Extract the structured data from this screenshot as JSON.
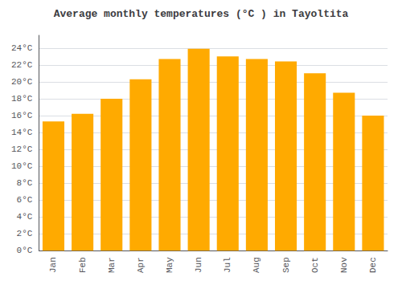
{
  "chart_data": {
    "type": "bar",
    "title": "Average monthly temperatures (°C ) in Tayoltita",
    "categories": [
      "Jan",
      "Feb",
      "Mar",
      "Apr",
      "May",
      "Jun",
      "Jul",
      "Aug",
      "Sep",
      "Oct",
      "Nov",
      "Dec"
    ],
    "values": [
      15.3,
      16.2,
      18.0,
      20.3,
      22.7,
      23.9,
      23.0,
      22.7,
      22.4,
      21.0,
      18.7,
      16.0
    ],
    "color": "#FFAA00",
    "ylim": [
      0,
      25.5
    ],
    "yticks": [
      {
        "value": 0,
        "label": "0°C"
      },
      {
        "value": 2,
        "label": "2°C"
      },
      {
        "value": 4,
        "label": "4°C"
      },
      {
        "value": 6,
        "label": "6°C"
      },
      {
        "value": 8,
        "label": "8°C"
      },
      {
        "value": 10,
        "label": "10°C"
      },
      {
        "value": 12,
        "label": "12°C"
      },
      {
        "value": 14,
        "label": "14°C"
      },
      {
        "value": 16,
        "label": "16°C"
      },
      {
        "value": 18,
        "label": "18°C"
      },
      {
        "value": 20,
        "label": "20°C"
      },
      {
        "value": 22,
        "label": "22°C"
      },
      {
        "value": 24,
        "label": "24°C"
      }
    ],
    "grid": true
  }
}
